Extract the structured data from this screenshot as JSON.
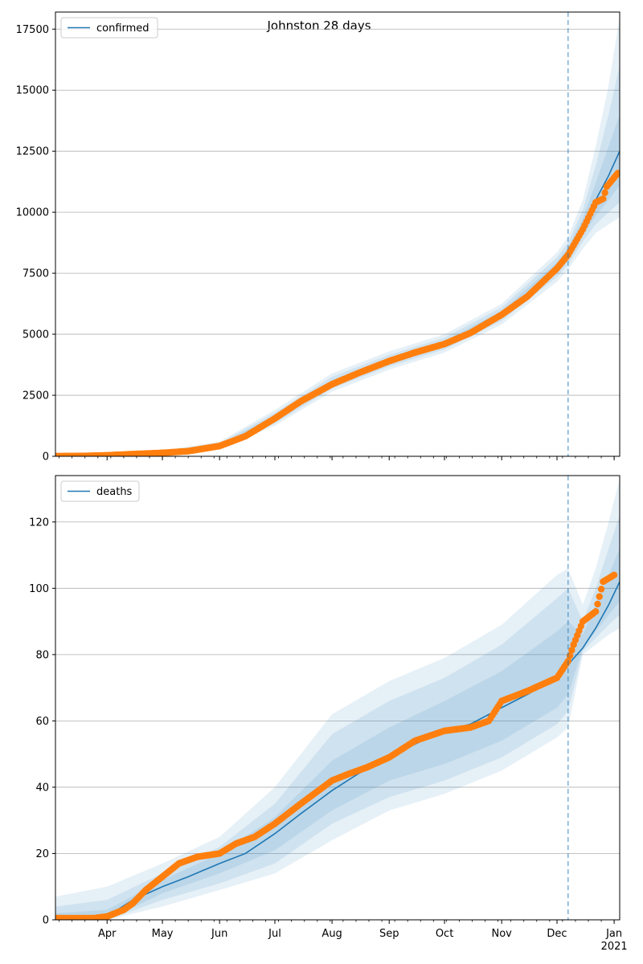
{
  "title": "Johnston 28 days",
  "colors": {
    "model": "#1f77b4",
    "observed": "#ff7f0e",
    "band": "#1f77b4",
    "forecast_line": "#1f77b4",
    "grid": "#b0b0b0"
  },
  "chart_data": [
    {
      "type": "line",
      "panel": "top",
      "legend": "confirmed",
      "legend_position": "top-left",
      "grid": "horizontal",
      "xlim": [
        "2020-03-04",
        "2021-01-04"
      ],
      "ylim": [
        0,
        18200
      ],
      "yticks": [
        0,
        2500,
        5000,
        7500,
        10000,
        12500,
        15000,
        17500
      ],
      "forecast_start": "2020-12-07",
      "model_points": [
        [
          "2020-03-04",
          20
        ],
        [
          "2020-03-21",
          30
        ],
        [
          "2020-04-01",
          60
        ],
        [
          "2020-04-15",
          100
        ],
        [
          "2020-05-01",
          150
        ],
        [
          "2020-05-15",
          230
        ],
        [
          "2020-06-01",
          420
        ],
        [
          "2020-06-15",
          800
        ],
        [
          "2020-07-01",
          1550
        ],
        [
          "2020-07-15",
          2250
        ],
        [
          "2020-08-01",
          3000
        ],
        [
          "2020-08-15",
          3450
        ],
        [
          "2020-09-01",
          3900
        ],
        [
          "2020-09-15",
          4250
        ],
        [
          "2020-10-01",
          4600
        ],
        [
          "2020-10-15",
          5050
        ],
        [
          "2020-11-01",
          5800
        ],
        [
          "2020-11-15",
          6550
        ],
        [
          "2020-12-01",
          7700
        ],
        [
          "2020-12-07",
          8250
        ],
        [
          "2020-12-15",
          9400
        ],
        [
          "2020-12-22",
          10500
        ],
        [
          "2020-12-29",
          11500
        ],
        [
          "2021-01-04",
          12500
        ]
      ],
      "band_points": [
        [
          "2020-03-04",
          0,
          80,
          0,
          50,
          0,
          30
        ],
        [
          "2020-04-01",
          20,
          140,
          35,
          110,
          45,
          90
        ],
        [
          "2020-05-01",
          90,
          240,
          110,
          210,
          125,
          185
        ],
        [
          "2020-06-01",
          300,
          600,
          340,
          540,
          370,
          480
        ],
        [
          "2020-07-01",
          1250,
          1900,
          1350,
          1780,
          1430,
          1680
        ],
        [
          "2020-08-01",
          2650,
          3400,
          2780,
          3260,
          2880,
          3130
        ],
        [
          "2020-09-01",
          3550,
          4300,
          3680,
          4160,
          3780,
          4030
        ],
        [
          "2020-10-01",
          4250,
          5000,
          4380,
          4860,
          4480,
          4730
        ],
        [
          "2020-11-01",
          5400,
          6250,
          5550,
          6100,
          5650,
          5950
        ],
        [
          "2020-12-01",
          7150,
          8350,
          7350,
          8150,
          7500,
          7950
        ],
        [
          "2020-12-07",
          7650,
          9000,
          7850,
          8750,
          8000,
          8550
        ],
        [
          "2020-12-15",
          8500,
          10500,
          8800,
          10100,
          9050,
          9750
        ],
        [
          "2020-12-22",
          9150,
          12700,
          9500,
          11900,
          9850,
          11200
        ],
        [
          "2020-12-29",
          9500,
          15200,
          10000,
          14000,
          10500,
          12700
        ],
        [
          "2021-01-04",
          9800,
          18000,
          10400,
          16000,
          11100,
          14000
        ]
      ],
      "observed_points": [
        [
          "2020-03-04",
          5
        ],
        [
          "2020-03-20",
          15
        ],
        [
          "2020-04-01",
          40
        ],
        [
          "2020-04-15",
          90
        ],
        [
          "2020-05-01",
          140
        ],
        [
          "2020-05-15",
          210
        ],
        [
          "2020-06-01",
          420
        ],
        [
          "2020-06-15",
          820
        ],
        [
          "2020-07-01",
          1550
        ],
        [
          "2020-07-15",
          2250
        ],
        [
          "2020-08-01",
          2950
        ],
        [
          "2020-08-15",
          3400
        ],
        [
          "2020-09-01",
          3900
        ],
        [
          "2020-09-15",
          4250
        ],
        [
          "2020-10-01",
          4600
        ],
        [
          "2020-10-15",
          5050
        ],
        [
          "2020-11-01",
          5800
        ],
        [
          "2020-11-15",
          6550
        ],
        [
          "2020-12-01",
          7700
        ],
        [
          "2020-12-07",
          8250
        ],
        [
          "2020-12-15",
          9300
        ],
        [
          "2020-12-22",
          10400
        ],
        [
          "2020-12-26",
          10550
        ],
        [
          "2020-12-28",
          11050
        ],
        [
          "2021-01-03",
          11600
        ]
      ]
    },
    {
      "type": "line",
      "panel": "bottom",
      "legend": "deaths",
      "legend_position": "top-left",
      "grid": "horizontal",
      "xlim": [
        "2020-03-04",
        "2021-01-04"
      ],
      "ylim": [
        0,
        134
      ],
      "yticks": [
        0,
        20,
        40,
        60,
        80,
        100,
        120
      ],
      "forecast_start": "2020-12-07",
      "xtick_labels": [
        "Apr",
        "May",
        "Jun",
        "Jul",
        "Aug",
        "Sep",
        "Oct",
        "Nov",
        "Dec",
        "Jan"
      ],
      "xtick_dates": [
        "2020-04-01",
        "2020-05-01",
        "2020-06-01",
        "2020-07-01",
        "2020-08-01",
        "2020-09-01",
        "2020-10-01",
        "2020-11-01",
        "2020-12-01",
        "2021-01-01"
      ],
      "year_label": "2021",
      "model_points": [
        [
          "2020-03-04",
          0.5
        ],
        [
          "2020-03-20",
          0.5
        ],
        [
          "2020-04-01",
          1
        ],
        [
          "2020-04-15",
          6
        ],
        [
          "2020-05-01",
          10
        ],
        [
          "2020-05-15",
          13
        ],
        [
          "2020-06-01",
          17
        ],
        [
          "2020-06-15",
          20
        ],
        [
          "2020-07-01",
          26
        ],
        [
          "2020-07-15",
          32
        ],
        [
          "2020-08-01",
          39
        ],
        [
          "2020-08-15",
          44
        ],
        [
          "2020-09-01",
          49
        ],
        [
          "2020-09-15",
          53
        ],
        [
          "2020-10-01",
          57
        ],
        [
          "2020-10-15",
          59
        ],
        [
          "2020-11-01",
          64
        ],
        [
          "2020-11-15",
          68
        ],
        [
          "2020-12-01",
          73
        ],
        [
          "2020-12-07",
          77
        ],
        [
          "2020-12-15",
          82
        ],
        [
          "2020-12-22",
          88
        ],
        [
          "2020-12-29",
          95
        ],
        [
          "2021-01-04",
          102
        ]
      ],
      "band_points": [
        [
          "2020-03-04",
          0,
          7,
          0,
          4,
          0,
          2
        ],
        [
          "2020-04-01",
          0,
          10,
          0,
          6,
          0,
          3
        ],
        [
          "2020-05-01",
          4,
          17,
          6,
          14,
          8,
          12
        ],
        [
          "2020-06-01",
          9,
          25,
          11,
          22,
          14,
          20
        ],
        [
          "2020-07-01",
          14,
          40,
          17,
          35,
          21,
          31
        ],
        [
          "2020-08-01",
          24,
          62,
          29,
          56,
          33,
          48
        ],
        [
          "2020-09-01",
          33,
          72,
          37,
          66,
          42,
          58
        ],
        [
          "2020-10-01",
          38,
          79,
          42,
          73,
          47,
          66
        ],
        [
          "2020-11-01",
          45,
          89,
          49,
          83,
          54,
          75
        ],
        [
          "2020-12-01",
          55,
          104,
          59,
          97,
          64,
          87
        ],
        [
          "2020-12-07",
          58,
          106,
          63,
          100,
          68,
          90
        ],
        [
          "2020-12-15",
          80,
          95,
          81,
          90,
          82,
          86
        ],
        [
          "2020-12-22",
          83,
          106,
          85,
          100,
          87,
          95
        ],
        [
          "2020-12-29",
          86,
          120,
          89,
          112,
          92,
          104
        ],
        [
          "2021-01-04",
          88,
          133,
          92,
          122,
          96,
          112
        ]
      ],
      "observed_points": [
        [
          "2020-03-04",
          0.5
        ],
        [
          "2020-03-25",
          0.5
        ],
        [
          "2020-04-01",
          1
        ],
        [
          "2020-04-10",
          3
        ],
        [
          "2020-04-15",
          5
        ],
        [
          "2020-04-22",
          9
        ],
        [
          "2020-05-01",
          13
        ],
        [
          "2020-05-10",
          17
        ],
        [
          "2020-05-20",
          19
        ],
        [
          "2020-06-01",
          20
        ],
        [
          "2020-06-10",
          23
        ],
        [
          "2020-06-20",
          25
        ],
        [
          "2020-07-01",
          29
        ],
        [
          "2020-07-15",
          35
        ],
        [
          "2020-08-01",
          42
        ],
        [
          "2020-08-10",
          44
        ],
        [
          "2020-08-20",
          46
        ],
        [
          "2020-09-01",
          49
        ],
        [
          "2020-09-15",
          54
        ],
        [
          "2020-10-01",
          57
        ],
        [
          "2020-10-15",
          58
        ],
        [
          "2020-10-25",
          60
        ],
        [
          "2020-11-01",
          66
        ],
        [
          "2020-11-15",
          69
        ],
        [
          "2020-12-01",
          73
        ],
        [
          "2020-12-07",
          78
        ],
        [
          "2020-12-10",
          83
        ],
        [
          "2020-12-15",
          90
        ],
        [
          "2020-12-22",
          93
        ],
        [
          "2020-12-26",
          102
        ],
        [
          "2021-01-01",
          104
        ]
      ]
    }
  ]
}
